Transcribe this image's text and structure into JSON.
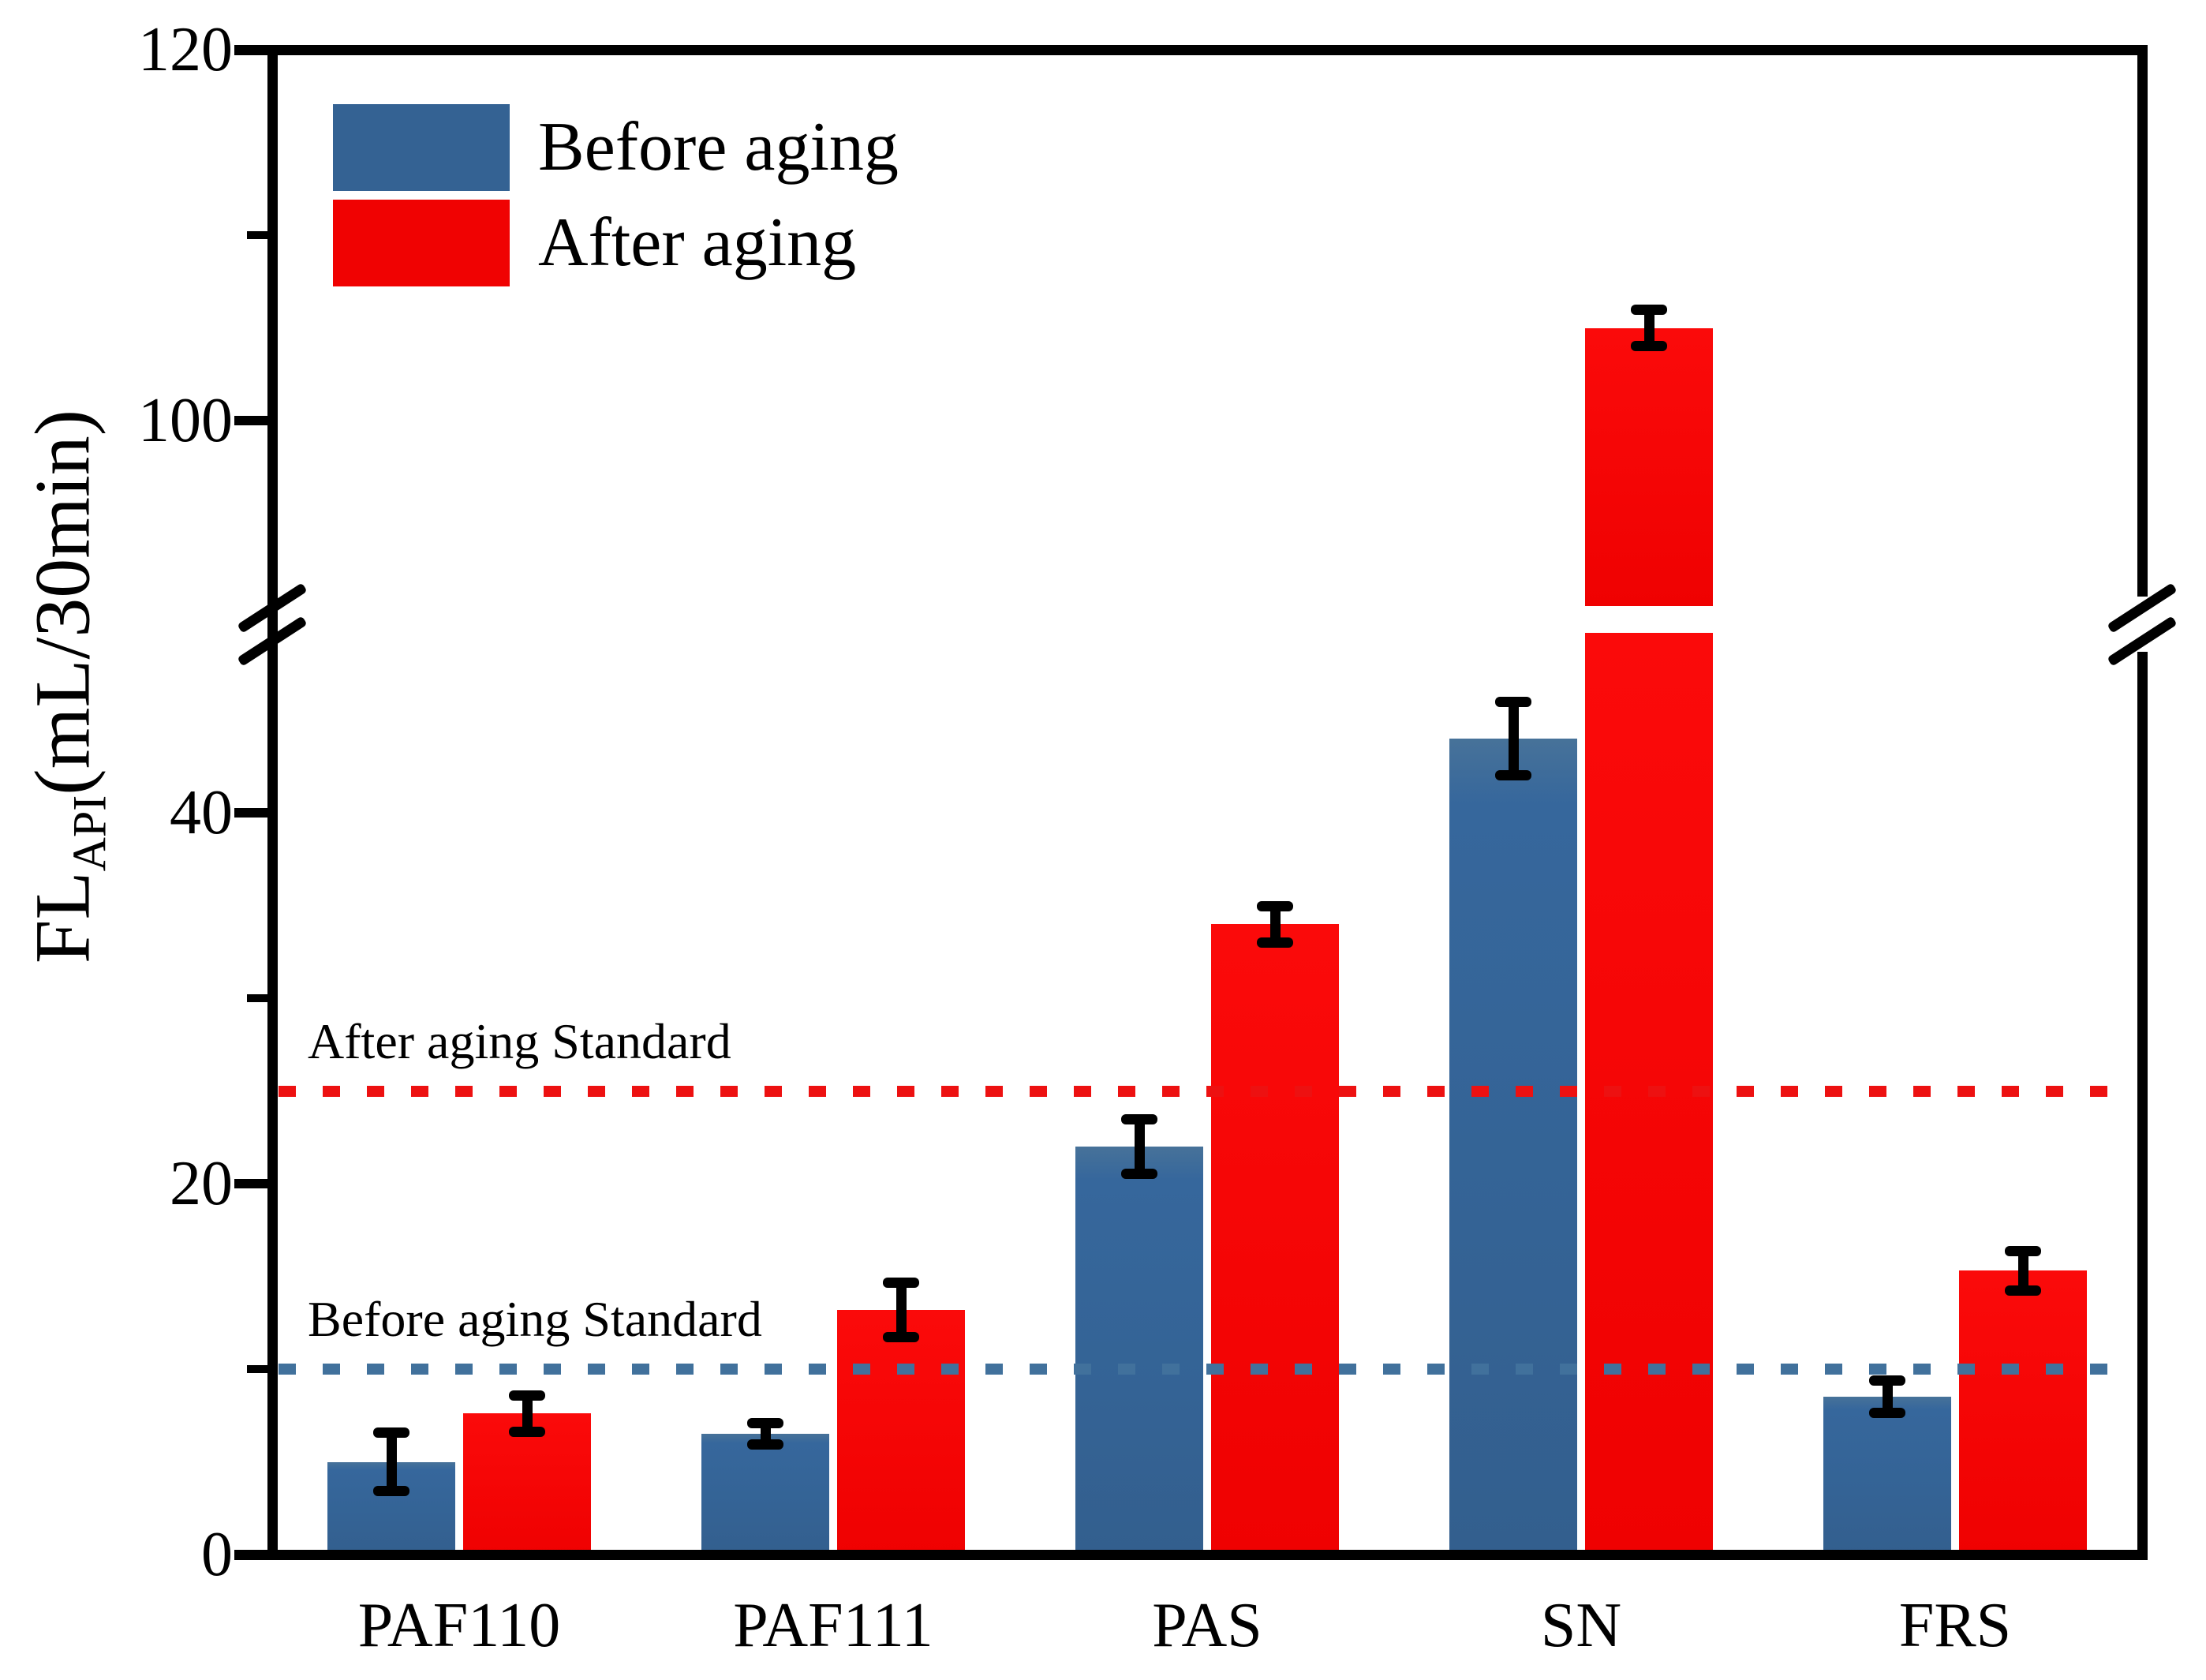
{
  "chart_data": {
    "type": "bar",
    "title": "",
    "categories": [
      "PAF110",
      "PAF111",
      "PAS",
      "SN",
      "FRS"
    ],
    "series": [
      {
        "name": "Before aging",
        "color": "#346293",
        "values": [
          5.0,
          6.5,
          22.0,
          44.0,
          8.5
        ],
        "errors": [
          1.6,
          0.6,
          1.5,
          2.0,
          0.9
        ]
      },
      {
        "name": "After aging",
        "color": "#f00202",
        "values": [
          7.6,
          13.2,
          34.0,
          105.0,
          15.3
        ],
        "errors": [
          1.0,
          1.5,
          1.0,
          1.0,
          1.1
        ]
      }
    ],
    "ylabel": {
      "main": "FL",
      "sub": "API",
      "unit": "(mL/30min)"
    },
    "xlabel": "",
    "axis_break": {
      "lower_max": 48,
      "upper_min": 91
    },
    "ylim_lower": [
      0,
      48
    ],
    "ylim_upper": [
      91,
      120
    ],
    "yticks_major": [
      {
        "value": 0,
        "label": "0"
      },
      {
        "value": 20,
        "label": "20"
      },
      {
        "value": 40,
        "label": "40"
      },
      {
        "value": 100,
        "label": "100"
      },
      {
        "value": 120,
        "label": "120"
      }
    ],
    "yticks_minor": [
      10,
      30,
      110
    ],
    "reference_lines": [
      {
        "label": "After aging Standard",
        "value": 25,
        "color": "#ed1111",
        "style": "dotted"
      },
      {
        "label": "Before aging Standard",
        "value": 10,
        "color": "#41719c",
        "style": "dotted"
      }
    ],
    "legend_position": "top-left",
    "grid": false
  }
}
